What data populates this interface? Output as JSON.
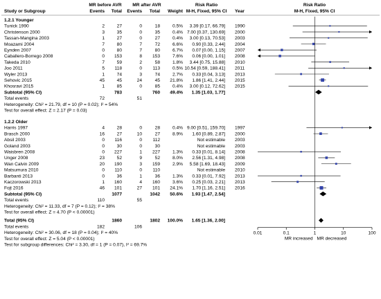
{
  "chart_data": {
    "type": "table",
    "headers": {
      "study": "Study or Subgroup",
      "group1": "MR before AVR",
      "group2": "MR after AVR",
      "events": "Events",
      "total": "Total",
      "weight": "Weight",
      "rr": "Risk Ratio",
      "rr_sub": "M-H, Fixed, 95% CI",
      "year": "Year",
      "plot_title": "Risk Ratio",
      "plot_sub": "M-H, Fixed, 95% CI"
    },
    "subgroups": [
      {
        "title": "1.2.1 Younger",
        "studies": [
          {
            "study": "Tunick 1990",
            "e1": "2",
            "t1": "27",
            "e2": "0",
            "t2": "18",
            "weight": "0.5%",
            "ci": "3.39 [0.17, 66.79]",
            "year": "1990",
            "rr": 3.39,
            "lo": 0.17,
            "hi": 66.79
          },
          {
            "study": "Christenson 2000",
            "e1": "3",
            "t1": "35",
            "e2": "0",
            "t2": "35",
            "weight": "0.4%",
            "ci": "7.00 [0.37, 130.69]",
            "year": "2000",
            "rr": 7.0,
            "lo": 0.37,
            "hi": 130.69
          },
          {
            "study": "Tassan-Mangina 2003",
            "e1": "1",
            "t1": "27",
            "e2": "0",
            "t2": "27",
            "weight": "0.4%",
            "ci": "3.00 [0.13, 70.53]",
            "year": "2003",
            "rr": 3.0,
            "lo": 0.13,
            "hi": 70.53
          },
          {
            "study": "Moazami 2004",
            "e1": "7",
            "t1": "80",
            "e2": "7",
            "t2": "72",
            "weight": "6.6%",
            "ci": "0.90 [0.33, 2.44]",
            "year": "2004",
            "rr": 0.9,
            "lo": 0.33,
            "hi": 2.44
          },
          {
            "study": "Eynden 2007",
            "e1": "0",
            "t1": "80",
            "e2": "7",
            "t2": "80",
            "weight": "6.7%",
            "ci": "0.07 [0.00, 1.15]",
            "year": "2007",
            "rr": 0.07,
            "lo": 0.0,
            "hi": 1.15
          },
          {
            "study": "Caballero-Borrego 2008",
            "e1": "0",
            "t1": "153",
            "e2": "8",
            "t2": "153",
            "weight": "7.6%",
            "ci": "0.06 [0.00, 1.01]",
            "year": "2008",
            "rr": 0.06,
            "lo": 0.0,
            "hi": 1.01
          },
          {
            "study": "Takeda 2010",
            "e1": "7",
            "t1": "59",
            "e2": "2",
            "t2": "58",
            "weight": "1.8%",
            "ci": "3.44 [0.75, 15.88]",
            "year": "2010",
            "rr": 3.44,
            "lo": 0.75,
            "hi": 15.88
          },
          {
            "study": "Joo 2011",
            "e1": "5",
            "t1": "118",
            "e2": "0",
            "t2": "113",
            "weight": "0.5%",
            "ci": "10.54 [0.59, 188.41]",
            "year": "2011",
            "rr": 10.54,
            "lo": 0.59,
            "hi": 188.41
          },
          {
            "study": "Wyler 2013",
            "e1": "1",
            "t1": "74",
            "e2": "3",
            "t2": "74",
            "weight": "2.7%",
            "ci": "0.33 [0.04, 3.13]",
            "year": "2013",
            "rr": 0.33,
            "lo": 0.04,
            "hi": 3.13
          },
          {
            "study": "Sehovic 2015",
            "e1": "45",
            "t1": "45",
            "e2": "24",
            "t2": "45",
            "weight": "21.8%",
            "ci": "1.86 [1.41, 2.44]",
            "year": "2015",
            "rr": 1.86,
            "lo": 1.41,
            "hi": 2.44
          },
          {
            "study": "Khosravi 2015",
            "e1": "1",
            "t1": "85",
            "e2": "0",
            "t2": "85",
            "weight": "0.4%",
            "ci": "3.00 [0.12, 72.62]",
            "year": "2015",
            "rr": 3.0,
            "lo": 0.12,
            "hi": 72.62
          }
        ],
        "subtotal": {
          "label": "Subtotal (95% CI)",
          "t1": "783",
          "t2": "760",
          "weight": "49.4%",
          "ci": "1.35 [1.03, 1.77]",
          "rr": 1.35,
          "lo": 1.03,
          "hi": 1.77
        },
        "total_events": {
          "label": "Total events",
          "e1": "72",
          "e2": "51"
        },
        "heterogeneity": "Heterogeneity: Chi² = 21.79, df = 10 (P = 0.02); I² = 54%",
        "overall": "Test for overall effect: Z = 2.17 (P = 0.03)"
      },
      {
        "title": "1.2.2 Older",
        "studies": [
          {
            "study": "Harris 1997",
            "e1": "4",
            "t1": "28",
            "e2": "0",
            "t2": "28",
            "weight": "0.4%",
            "ci": "9.00 [0.51, 159.70]",
            "year": "1997",
            "rr": 9.0,
            "lo": 0.51,
            "hi": 159.7
          },
          {
            "study": "Brasch 2000",
            "e1": "16",
            "t1": "27",
            "e2": "10",
            "t2": "27",
            "weight": "8.9%",
            "ci": "1.60 [0.89, 2.87]",
            "year": "2000",
            "rr": 1.6,
            "lo": 0.89,
            "hi": 2.87
          },
          {
            "study": "Absil 2003",
            "e1": "0",
            "t1": "116",
            "e2": "0",
            "t2": "112",
            "weight": "",
            "ci": "Not estimable",
            "year": "2003"
          },
          {
            "study": "Goland 2003",
            "e1": "0",
            "t1": "30",
            "e2": "0",
            "t2": "30",
            "weight": "",
            "ci": "Not estimable",
            "year": "2003"
          },
          {
            "study": "Waisbren 2008",
            "e1": "0",
            "t1": "227",
            "e2": "1",
            "t2": "227",
            "weight": "1.3%",
            "ci": "0.33 [0.01, 8.14]",
            "year": "2008",
            "rr": 0.33,
            "lo": 0.01,
            "hi": 8.14
          },
          {
            "study": "Unger 2008",
            "e1": "23",
            "t1": "52",
            "e2": "9",
            "t2": "52",
            "weight": "8.0%",
            "ci": "2.56 [1.31, 4.98]",
            "year": "2008",
            "rr": 2.56,
            "lo": 1.31,
            "hi": 4.98
          },
          {
            "study": "Wan Calvin 2009",
            "e1": "20",
            "t1": "190",
            "e2": "3",
            "t2": "159",
            "weight": "2.9%",
            "ci": "5.58 [1.69, 18.43]",
            "year": "2009",
            "rr": 5.58,
            "lo": 1.69,
            "hi": 18.43
          },
          {
            "study": "Matsumura 2010",
            "e1": "0",
            "t1": "110",
            "e2": "0",
            "t2": "110",
            "weight": "",
            "ci": "Not estimable",
            "year": "2010"
          },
          {
            "study": "Barbanti 2013",
            "e1": "0",
            "t1": "36",
            "e2": "1",
            "t2": "36",
            "weight": "1.3%",
            "ci": "0.33 [0.01, 7.92]",
            "year": "2013",
            "rr": 0.33,
            "lo": 0.01,
            "hi": 7.92
          },
          {
            "study": "Kaczorowski 2013",
            "e1": "1",
            "t1": "160",
            "e2": "4",
            "t2": "160",
            "weight": "3.6%",
            "ci": "0.25 [0.03, 2.21]",
            "year": "2013",
            "rr": 0.25,
            "lo": 0.03,
            "hi": 2.21
          },
          {
            "study": "Fojt 2016",
            "e1": "46",
            "t1": "101",
            "e2": "27",
            "t2": "101",
            "weight": "24.1%",
            "ci": "1.70 [1.16, 2.51]",
            "year": "2016",
            "rr": 1.7,
            "lo": 1.16,
            "hi": 2.51
          }
        ],
        "subtotal": {
          "label": "Subtotal (95% CI)",
          "t1": "1077",
          "t2": "1042",
          "weight": "50.6%",
          "ci": "1.93 [1.47, 2.54]",
          "rr": 1.93,
          "lo": 1.47,
          "hi": 2.54
        },
        "total_events": {
          "label": "Total events",
          "e1": "110",
          "e2": "55"
        },
        "heterogeneity": "Heterogeneity: Chi² = 11.33, df = 7 (P = 0.12); I² = 38%",
        "overall": "Test for overall effect: Z = 4.70 (P < 0.00001)"
      }
    ],
    "total": {
      "label": "Total (95% CI)",
      "t1": "1860",
      "t2": "1802",
      "weight": "100.0%",
      "ci": "1.65 [1.36, 2.00]",
      "rr": 1.65,
      "lo": 1.36,
      "hi": 2.0
    },
    "total_events": {
      "label": "Total events",
      "e1": "182",
      "e2": "106"
    },
    "heterogeneity": "Heterogeneity: Chi² = 30.06, df = 18 (P = 0.04); I² = 40%",
    "overall": "Test for overall effect: Z = 5.04 (P < 0.00001)",
    "subgroup_diff": "Test for subgroup differences: Chi² = 3.30, df = 1 (P = 0.07), I² = 69.7%",
    "axis": {
      "scale": "log",
      "ticks": [
        0.01,
        0.1,
        1,
        10,
        100
      ],
      "tick_labels": [
        "0.01",
        "0.1",
        "1",
        "10",
        "100"
      ],
      "range": [
        0.01,
        100
      ],
      "left_label": "MR increased",
      "right_label": "MR decreased"
    },
    "colors": {
      "marker": "#3344aa",
      "diamond": "#000000",
      "line": "#000000",
      "header_rule": "#999999"
    }
  }
}
